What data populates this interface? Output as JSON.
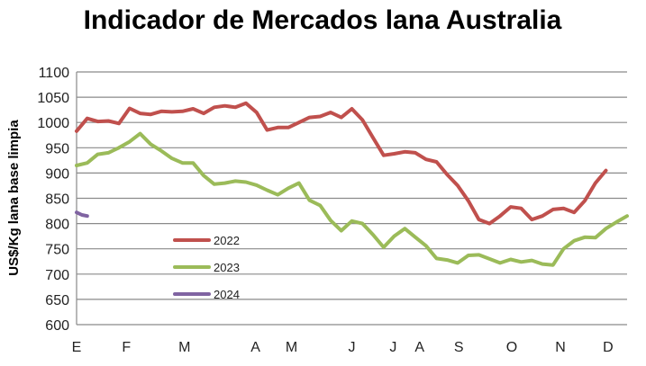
{
  "chart_data": {
    "type": "line",
    "title": "Indicador de Mercados lana Australia",
    "xlabel": "",
    "ylabel": "US$/Kg lana base limpia",
    "ylim": [
      600,
      1100
    ],
    "yticks": [
      600,
      650,
      700,
      750,
      800,
      850,
      900,
      950,
      1000,
      1050,
      1100
    ],
    "xlim": [
      0,
      52
    ],
    "xticks": [
      {
        "label": "E",
        "x": 0
      },
      {
        "label": "F",
        "x": 4.7
      },
      {
        "label": "M",
        "x": 10.2
      },
      {
        "label": "A",
        "x": 16.9
      },
      {
        "label": "M",
        "x": 20.3
      },
      {
        "label": "J",
        "x": 26
      },
      {
        "label": "J",
        "x": 29.9
      },
      {
        "label": "A",
        "x": 32.4
      },
      {
        "label": "S",
        "x": 36.1
      },
      {
        "label": "O",
        "x": 41.1
      },
      {
        "label": "N",
        "x": 45.7
      },
      {
        "label": "D",
        "x": 50.2
      }
    ],
    "grid": true,
    "legend_position": "center-left",
    "series": [
      {
        "name": "2022",
        "color": "#C0504D",
        "values": [
          983,
          1008,
          1002,
          1003,
          998,
          1028,
          1018,
          1016,
          1022,
          1021,
          1022,
          1027,
          1018,
          1030,
          1033,
          1030,
          1038,
          1020,
          985,
          990,
          990,
          1000,
          1010,
          1012,
          1020,
          1010,
          1027,
          1005,
          970,
          935,
          938,
          942,
          940,
          927,
          922,
          897,
          875,
          845,
          808,
          800,
          815,
          833,
          830,
          808,
          815,
          828,
          830,
          822,
          845,
          880,
          905
        ]
      },
      {
        "name": "2023",
        "color": "#9BBB59",
        "values": [
          915,
          920,
          937,
          940,
          950,
          962,
          978,
          957,
          944,
          929,
          920,
          920,
          895,
          878,
          880,
          884,
          882,
          876,
          866,
          857,
          870,
          880,
          846,
          836,
          806,
          786,
          805,
          800,
          778,
          753,
          775,
          790,
          773,
          756,
          731,
          728,
          722,
          737,
          738,
          730,
          722,
          729,
          724,
          727,
          720,
          718,
          750,
          766,
          773,
          772,
          790,
          803,
          815
        ]
      },
      {
        "name": "2024",
        "color": "#8064A2",
        "values": [
          822,
          817,
          815
        ]
      }
    ]
  }
}
